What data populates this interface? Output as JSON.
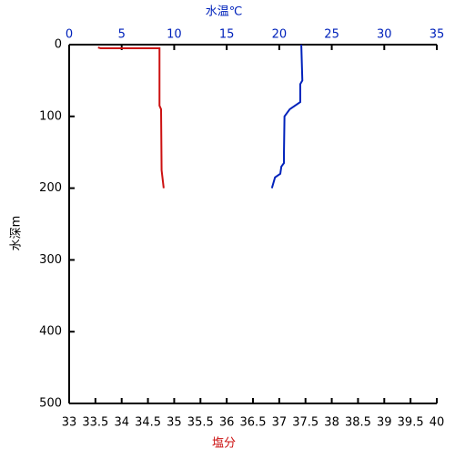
{
  "chart_data": {
    "type": "line",
    "x2_label": "水温℃",
    "x_label": "塩分",
    "y_label": "水深m",
    "xlim": [
      33,
      40
    ],
    "xticks": [
      33,
      33.5,
      34,
      34.5,
      35,
      35.5,
      36,
      36.5,
      37,
      37.5,
      38,
      38.5,
      39,
      39.5,
      40
    ],
    "x2lim": [
      0,
      35
    ],
    "x2ticks": [
      0,
      5,
      10,
      15,
      20,
      25,
      30,
      35
    ],
    "ylim": [
      0,
      500
    ],
    "yticks": [
      0,
      100,
      200,
      300,
      400,
      500
    ],
    "y_inverted": true,
    "series": [
      {
        "color": "#0022bb",
        "axis": "x2",
        "x": [
          22.1,
          22.2,
          22.0,
          22.0,
          21.0,
          20.5,
          20.45,
          20.45,
          20.2,
          20.1,
          19.6,
          19.3
        ],
        "values": [
          0,
          50,
          55,
          80,
          90,
          100,
          150,
          165,
          170,
          180,
          185,
          200
        ]
      },
      {
        "color": "#cc1111",
        "x": [
          33.55,
          33.6,
          34.72,
          34.72,
          34.75,
          34.76,
          34.8
        ],
        "values": [
          4,
          5,
          5,
          85,
          90,
          175,
          200
        ]
      }
    ]
  }
}
